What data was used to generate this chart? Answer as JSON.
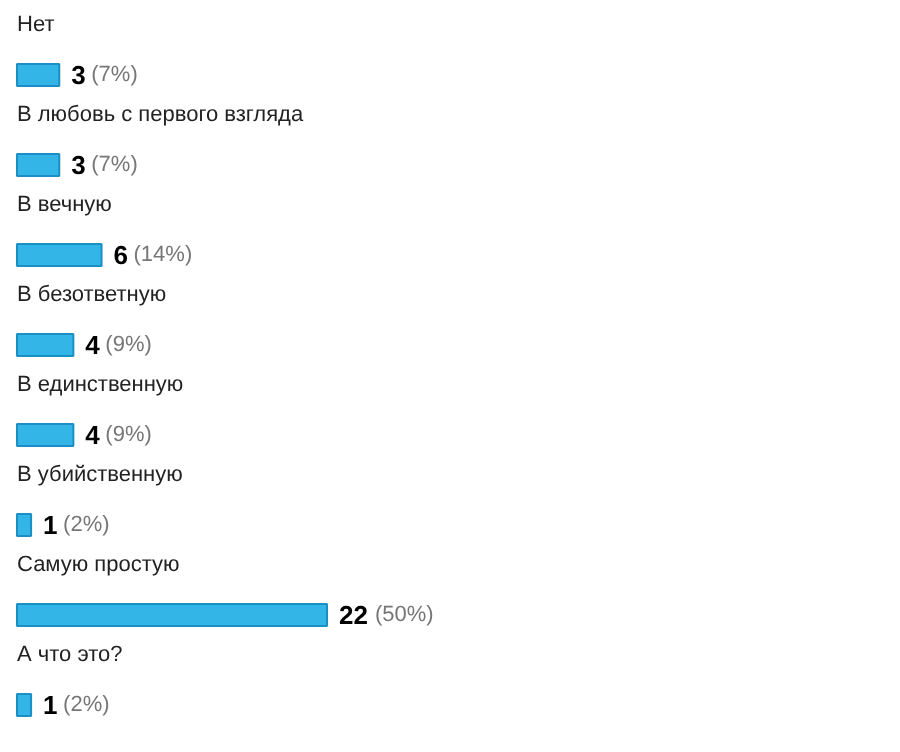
{
  "chart_data": {
    "type": "bar",
    "orientation": "horizontal",
    "categories": [
      "Нет",
      "В любовь с первого взгляда",
      "В вечную",
      "В безответную",
      "В единственную",
      "В убийственную",
      "Самую простую",
      "А что это?"
    ],
    "values": [
      3,
      3,
      6,
      4,
      4,
      1,
      22,
      1
    ],
    "color": "#33b5e8",
    "value_labels": [
      "3 (7%)",
      "3 (7%)",
      "6 (14%)",
      "4 (9%)",
      "4 (9%)",
      "1 (2%)",
      "22 (50%)",
      "1 (2%)"
    ]
  }
}
